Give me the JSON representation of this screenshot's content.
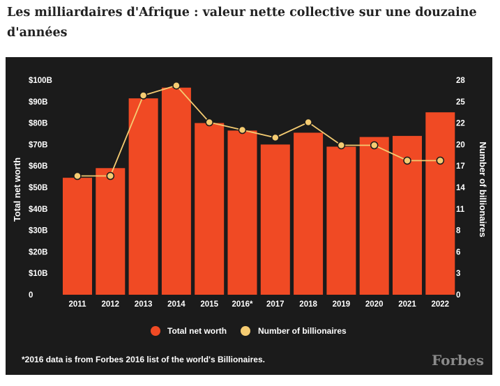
{
  "headline": "Les milliardaires d'Afrique : valeur nette collective sur une douzaine d'années",
  "chart_data": {
    "type": "bar",
    "categories": [
      "2011",
      "2012",
      "2013",
      "2014",
      "2015",
      "2016*",
      "2017",
      "2018",
      "2019",
      "2020",
      "2021",
      "2022"
    ],
    "series": [
      {
        "name": "Total net worth",
        "kind": "bar",
        "axis": "left",
        "color": "#f04a24",
        "values": [
          54.5,
          59,
          91.5,
          96.5,
          80,
          76.5,
          70,
          75.5,
          69,
          73.5,
          74,
          85
        ]
      },
      {
        "name": "Number of billionaires",
        "kind": "line",
        "axis": "right",
        "color": "#f5cc72",
        "values": [
          15.5,
          15.5,
          26,
          27.3,
          22.5,
          21.5,
          20.5,
          22.5,
          19.5,
          19.5,
          17.5,
          17.5
        ]
      }
    ],
    "y_left": {
      "label": "Total net worth",
      "range": [
        0,
        100
      ],
      "ticks": [
        "0",
        "$10B",
        "$20B",
        "$30B",
        "$40B",
        "$50B",
        "$60B",
        "$70B",
        "$80B",
        "$90B",
        "$100B"
      ]
    },
    "y_right": {
      "label": "Number of billionaires",
      "range": [
        0,
        28
      ],
      "ticks": [
        "0",
        "3",
        "6",
        "8",
        "11",
        "14",
        "17",
        "20",
        "22",
        "25",
        "28"
      ]
    },
    "legend_position": "bottom",
    "grid": false,
    "footnote": "*2016 data is from Forbes 2016 list of the world's Billionaires.",
    "brand": "Forbes",
    "colors": {
      "background": "#1b1b1b",
      "bar": "#f04a24",
      "line": "#f5cc72",
      "text": "#ffffff"
    }
  }
}
